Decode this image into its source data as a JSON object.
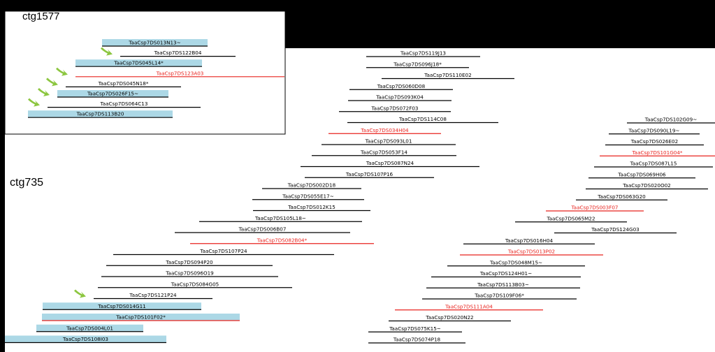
{
  "inset": {
    "label": "ctg1577",
    "clones": [
      {
        "name": "TaaCsp7DS013N13~",
        "highlight": "blue",
        "arrow": false
      },
      {
        "name": "TaaCsp7DS122B04",
        "highlight": "none",
        "arrow": true
      },
      {
        "name": "TaaCsp7DS045L14*",
        "highlight": "blue",
        "arrow": false
      },
      {
        "name": "TaaCsp7DS123A03",
        "highlight": "red",
        "arrow": true
      },
      {
        "name": "TaaCsp7DS045N18*",
        "highlight": "none",
        "arrow": true
      },
      {
        "name": "TaaCsp7DS026F15~",
        "highlight": "blue",
        "arrow": true
      },
      {
        "name": "TaaCsp7DS064C13",
        "highlight": "none",
        "arrow": true
      },
      {
        "name": "TaaCsp7DS113B20",
        "highlight": "blue",
        "arrow": false
      }
    ]
  },
  "main": {
    "label": "ctg735",
    "col_left": [
      {
        "name": "TaaCsp7DS119J13",
        "highlight": "none",
        "arrow": false
      },
      {
        "name": "TaaCsp7DS096J18*",
        "highlight": "none",
        "arrow": false
      },
      {
        "name": "TaaCsp7DS110E02",
        "highlight": "none",
        "arrow": false
      },
      {
        "name": "TaaCsp7DS060D08",
        "highlight": "none",
        "arrow": false
      },
      {
        "name": "TaaCsp7DS093K04",
        "highlight": "none",
        "arrow": false
      },
      {
        "name": "TaaCsp7DS072F03",
        "highlight": "none",
        "arrow": false
      },
      {
        "name": "TaaCsp7DS114C08",
        "highlight": "none",
        "arrow": false
      },
      {
        "name": "TaaCsp7DS034H04",
        "highlight": "red",
        "arrow": false
      },
      {
        "name": "TaaCsp7DS093L01",
        "highlight": "none",
        "arrow": false
      },
      {
        "name": "TaaCsp7DS053F14",
        "highlight": "none",
        "arrow": false
      },
      {
        "name": "TaaCsp7DS087N24",
        "highlight": "none",
        "arrow": false
      },
      {
        "name": "TaaCsp7DS107P16",
        "highlight": "none",
        "arrow": false
      },
      {
        "name": "TaaCsp7DS002D18",
        "highlight": "none",
        "arrow": false
      },
      {
        "name": "TaaCsp7DS055E17~",
        "highlight": "none",
        "arrow": false
      },
      {
        "name": "TaaCsp7DS012K15",
        "highlight": "none",
        "arrow": false
      },
      {
        "name": "TaaCsp7DS105L18~",
        "highlight": "none",
        "arrow": false
      },
      {
        "name": "TaaCsp7DS006B07",
        "highlight": "none",
        "arrow": false
      },
      {
        "name": "TaaCsp7DS082B04*",
        "highlight": "red",
        "arrow": false
      },
      {
        "name": "TaaCsp7DS107P24",
        "highlight": "none",
        "arrow": false
      },
      {
        "name": "TaaCsp7DS094P20",
        "highlight": "none",
        "arrow": false
      },
      {
        "name": "TaaCsp7DS096O19",
        "highlight": "none",
        "arrow": false
      },
      {
        "name": "TaaCsp7DS084G05",
        "highlight": "none",
        "arrow": false
      },
      {
        "name": "TaaCsp7DS121P24",
        "highlight": "none",
        "arrow": true
      },
      {
        "name": "TaaCsp7DS014G11",
        "highlight": "blue",
        "arrow": false
      },
      {
        "name": "TaaCsp7DS101F02*",
        "highlight": "blue-red",
        "arrow": false
      },
      {
        "name": "TaaCsp7DS004L01",
        "highlight": "blue",
        "arrow": false
      },
      {
        "name": "TaaCsp7DS108I03",
        "highlight": "blue",
        "arrow": false
      }
    ],
    "col_right": [
      {
        "name": "TaaCsp7DS102G09~",
        "highlight": "none",
        "arrow": false
      },
      {
        "name": "TaaCsp7DS090L19~",
        "highlight": "none",
        "arrow": false
      },
      {
        "name": "TaaCsp7DS026E02",
        "highlight": "none",
        "arrow": false
      },
      {
        "name": "TaaCsp7DS101G04*",
        "highlight": "red",
        "arrow": false
      },
      {
        "name": "TaaCsp7DS087L15",
        "highlight": "none",
        "arrow": false
      },
      {
        "name": "TaaCsp7DS069H06",
        "highlight": "none",
        "arrow": false
      },
      {
        "name": "TaaCsp7DS020O02",
        "highlight": "none",
        "arrow": false
      },
      {
        "name": "TaaCsp7DS063G20",
        "highlight": "none",
        "arrow": false
      },
      {
        "name": "TaaCsp7DS003F07",
        "highlight": "red",
        "arrow": false
      },
      {
        "name": "TaaCsp7DS065M22",
        "highlight": "none",
        "arrow": false
      },
      {
        "name": "TaaCsp7DS124G03",
        "highlight": "none",
        "arrow": false
      },
      {
        "name": "TaaCsp7DS016H04",
        "highlight": "none",
        "arrow": false
      },
      {
        "name": "TaaCsp7DS013P02",
        "highlight": "red",
        "arrow": false
      },
      {
        "name": "TaaCsp7DS048M15~",
        "highlight": "none",
        "arrow": false
      },
      {
        "name": "TaaCsp7DS124H01~",
        "highlight": "none",
        "arrow": false
      },
      {
        "name": "TaaCsp7DS113B03~",
        "highlight": "none",
        "arrow": false
      },
      {
        "name": "TaaCsp7DS109F06*",
        "highlight": "none",
        "arrow": false
      },
      {
        "name": "TaaCsp7DS111A04",
        "highlight": "red",
        "arrow": false
      },
      {
        "name": "TaaCsp7DS020N22",
        "highlight": "none",
        "arrow": false
      },
      {
        "name": "TaaCsp7DS075K15~",
        "highlight": "none",
        "arrow": false
      },
      {
        "name": "TaaCsp7DS074P18",
        "highlight": "none",
        "arrow": false
      }
    ]
  },
  "colors": {
    "background": "#000000",
    "panel": "#ffffff",
    "line": "#000000",
    "red": "#e8231e",
    "blue": "#acd8e6",
    "arrow": "#8cc63f"
  }
}
